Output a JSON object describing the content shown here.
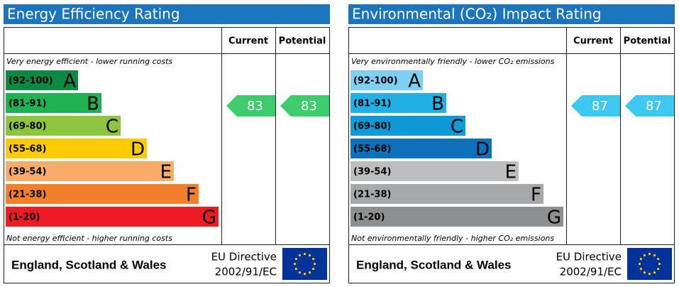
{
  "panels": [
    {
      "title": "Energy Efficiency Rating",
      "headers": [
        "Current",
        "Potential"
      ],
      "top_note": "Very energy efficient - lower running costs",
      "bottom_note": "Not energy efficient - higher running costs",
      "bands": [
        {
          "range": "(92-100)",
          "letter": "A",
          "color": "#0c8a43"
        },
        {
          "range": "(81-91)",
          "letter": "B",
          "color": "#1eb253"
        },
        {
          "range": "(69-80)",
          "letter": "C",
          "color": "#8cc63f"
        },
        {
          "range": "(55-68)",
          "letter": "D",
          "color": "#ffcc03"
        },
        {
          "range": "(39-54)",
          "letter": "E",
          "color": "#f8ac69"
        },
        {
          "range": "(21-38)",
          "letter": "F",
          "color": "#f2802a"
        },
        {
          "range": "(1-20)",
          "letter": "G",
          "color": "#ed1c24"
        }
      ],
      "current": 83,
      "potential": 83,
      "arrow_color": "#3ecb6b",
      "footer": "England, Scotland & Wales",
      "directive": [
        "EU Directive",
        "2002/91/EC"
      ]
    },
    {
      "title": "Environmental (CO₂) Impact Rating",
      "headers": [
        "Current",
        "Potential"
      ],
      "top_note": "Very environmentally friendly - lower CO₂ emissions",
      "bottom_note": "Not environmentally friendly - higher CO₂ emissions",
      "bands": [
        {
          "range": "(92-100)",
          "letter": "A",
          "color": "#7fcff4"
        },
        {
          "range": "(81-91)",
          "letter": "B",
          "color": "#21b1e7"
        },
        {
          "range": "(69-80)",
          "letter": "C",
          "color": "#0d9ad6"
        },
        {
          "range": "(55-68)",
          "letter": "D",
          "color": "#0d72b9"
        },
        {
          "range": "(39-54)",
          "letter": "E",
          "color": "#bbbdbf"
        },
        {
          "range": "(21-38)",
          "letter": "F",
          "color": "#a6a8aa"
        },
        {
          "range": "(1-20)",
          "letter": "G",
          "color": "#8d8f91"
        }
      ],
      "current": 87,
      "potential": 87,
      "arrow_color": "#3fc8ef",
      "footer": "England, Scotland & Wales",
      "directive": [
        "EU Directive",
        "2002/91/EC"
      ]
    }
  ]
}
